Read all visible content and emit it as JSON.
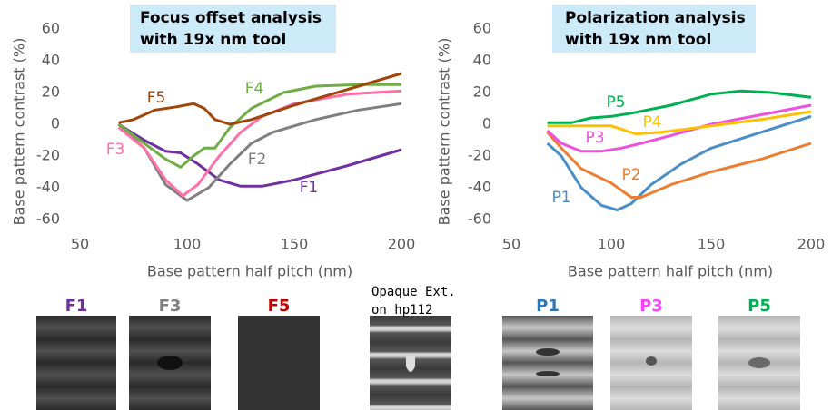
{
  "chart_data": [
    {
      "type": "line",
      "title": [
        "Focus offset analysis",
        "with 19x nm tool"
      ],
      "xlabel": "Base pattern half pitch (nm)",
      "ylabel": "Base pattern contrast (%)",
      "xlim": [
        50,
        200
      ],
      "xticks": [
        50,
        100,
        150,
        200
      ],
      "ylim": [
        -60,
        60
      ],
      "yticks": [
        -60,
        -40,
        -20,
        0,
        20,
        40,
        60
      ],
      "series": [
        {
          "name": "F1",
          "color": "#7030a0",
          "x": [
            68,
            80,
            90,
            97,
            105,
            115,
            125,
            135,
            150,
            175,
            200
          ],
          "values": [
            0,
            -10,
            -17,
            -18,
            -25,
            -35,
            -39,
            -39,
            -35,
            -26,
            -16
          ]
        },
        {
          "name": "F2",
          "color": "#7f7f7f",
          "x": [
            68,
            80,
            90,
            100,
            110,
            120,
            130,
            140,
            160,
            180,
            200
          ],
          "values": [
            0,
            -15,
            -38,
            -48,
            -40,
            -25,
            -12,
            -5,
            3,
            9,
            13
          ]
        },
        {
          "name": "F3",
          "color": "#ff70a8",
          "x": [
            68,
            80,
            90,
            98,
            105,
            115,
            125,
            135,
            150,
            175,
            200
          ],
          "values": [
            -2,
            -15,
            -35,
            -45,
            -38,
            -20,
            -5,
            5,
            13,
            19,
            21
          ]
        },
        {
          "name": "F4",
          "color": "#70ad47",
          "x": [
            68,
            80,
            90,
            97,
            103,
            108,
            113,
            120,
            130,
            145,
            160,
            180,
            200
          ],
          "values": [
            0,
            -12,
            -22,
            -27,
            -20,
            -15,
            -15,
            -2,
            10,
            20,
            24,
            25,
            25
          ]
        },
        {
          "name": "F5",
          "color": "#a0460a",
          "x": [
            68,
            75,
            85,
            95,
            103,
            108,
            113,
            120,
            130,
            150,
            175,
            200
          ],
          "values": [
            1,
            3,
            9,
            11,
            13,
            10,
            3,
            0,
            3,
            12,
            22,
            32
          ]
        }
      ]
    },
    {
      "type": "line",
      "title": [
        "Polarization analysis",
        "with 19x nm tool"
      ],
      "xlabel": "Base pattern half pitch (nm)",
      "ylabel": "Base pattern contrast (%)",
      "xlim": [
        50,
        200
      ],
      "xticks": [
        50,
        100,
        150,
        200
      ],
      "ylim": [
        -60,
        60
      ],
      "yticks": [
        -60,
        -40,
        -20,
        0,
        20,
        40,
        60
      ],
      "series": [
        {
          "name": "P1",
          "color": "#4a8ec8",
          "x": [
            68,
            75,
            85,
            95,
            103,
            110,
            120,
            135,
            150,
            175,
            200
          ],
          "values": [
            -12,
            -20,
            -40,
            -51,
            -54,
            -50,
            -38,
            -25,
            -15,
            -5,
            5
          ]
        },
        {
          "name": "P2",
          "color": "#ed7d31",
          "x": [
            68,
            75,
            85,
            100,
            110,
            115,
            130,
            150,
            175,
            200
          ],
          "values": [
            -5,
            -15,
            -28,
            -37,
            -46,
            -46,
            -38,
            -30,
            -22,
            -12
          ]
        },
        {
          "name": "P3",
          "color": "#f050e0",
          "x": [
            68,
            75,
            85,
            95,
            105,
            115,
            130,
            150,
            175,
            200
          ],
          "values": [
            -4,
            -12,
            -17,
            -17,
            -15,
            -12,
            -7,
            0,
            6,
            12
          ]
        },
        {
          "name": "P4",
          "color": "#ffc000",
          "x": [
            68,
            85,
            100,
            105,
            112,
            125,
            150,
            175,
            200
          ],
          "values": [
            -1,
            -1,
            -1,
            -3,
            -6,
            -5,
            -1,
            3,
            8
          ]
        },
        {
          "name": "P5",
          "color": "#00b050",
          "x": [
            68,
            80,
            90,
            100,
            110,
            130,
            150,
            165,
            180,
            200
          ],
          "values": [
            1,
            1,
            4,
            5,
            7,
            12,
            19,
            21,
            20,
            17
          ]
        }
      ]
    }
  ],
  "thumbnails": [
    {
      "label": [
        "F1"
      ],
      "color": "#7030a0"
    },
    {
      "label": [
        "F3"
      ],
      "color": "#7f7f7f"
    },
    {
      "label": [
        "F5"
      ],
      "color": "#c00000"
    },
    {
      "label": [
        "Opaque Ext.",
        "on hp112"
      ],
      "color": "#000000"
    },
    {
      "label": [
        "P1"
      ],
      "color": "#2e75b6"
    },
    {
      "label": [
        "P3"
      ],
      "color": "#ff40ff"
    },
    {
      "label": [
        "P5"
      ],
      "color": "#00b050"
    }
  ]
}
